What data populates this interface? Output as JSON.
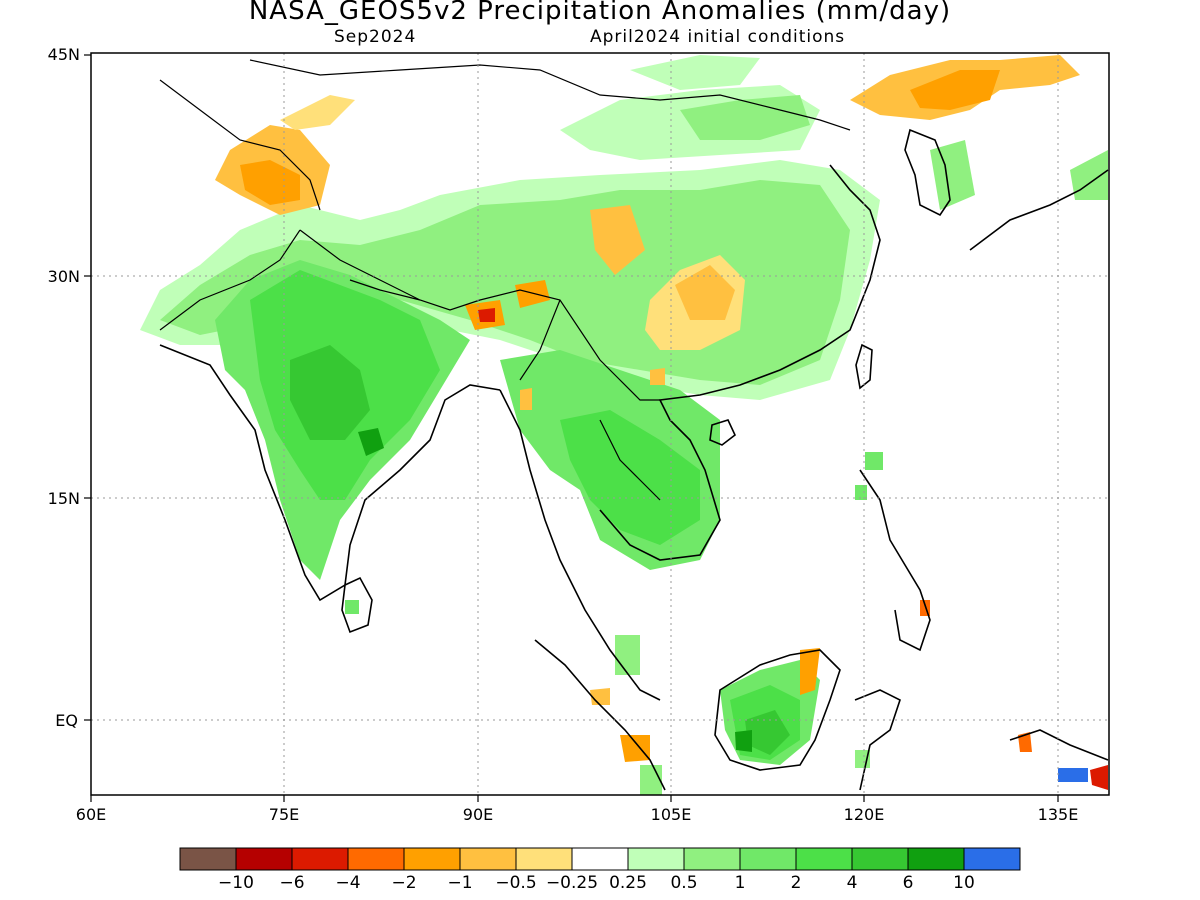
{
  "title": "NASA_GEOS5v2 Precipitation Anomalies (mm/day)",
  "subtitle_left": "Sep2024",
  "subtitle_right": "April2024 initial conditions",
  "y_ticks": [
    {
      "label": "45N",
      "lat": 45
    },
    {
      "label": "30N",
      "lat": 30
    },
    {
      "label": "15N",
      "lat": 15
    },
    {
      "label": "EQ",
      "lat": 0
    }
  ],
  "x_ticks": [
    {
      "label": "60E",
      "lon": 60
    },
    {
      "label": "75E",
      "lon": 75
    },
    {
      "label": "90E",
      "lon": 90
    },
    {
      "label": "105E",
      "lon": 105
    },
    {
      "label": "120E",
      "lon": 120
    },
    {
      "label": "135E",
      "lon": 135
    }
  ],
  "extent": {
    "lon": [
      60,
      139
    ],
    "lat": [
      -5,
      46
    ]
  },
  "colorbar": {
    "colors": [
      "#7a5446",
      "#b50000",
      "#dc1a00",
      "#ff6a00",
      "#ffa000",
      "#ffc040",
      "#ffe07a",
      "#ffffff",
      "#c0ffb8",
      "#90f080",
      "#70e868",
      "#4ce048",
      "#36c832",
      "#10a010",
      "#2a6ee8"
    ],
    "labels": [
      "−10",
      "−6",
      "−4",
      "−2",
      "−1",
      "−0.5",
      "−0.25",
      "0.25",
      "0.5",
      "1",
      "2",
      "4",
      "6",
      "10"
    ]
  },
  "color_key": {
    "g1": "#c0ffb8",
    "g2": "#90f080",
    "g3": "#70e868",
    "g4": "#4ce048",
    "g5": "#36c832",
    "g6": "#10a010",
    "o1": "#ffe07a",
    "o2": "#ffc040",
    "o3": "#ffa000",
    "o4": "#ff6a00",
    "o5": "#dc1a00",
    "blue": "#2a6ee8"
  }
}
